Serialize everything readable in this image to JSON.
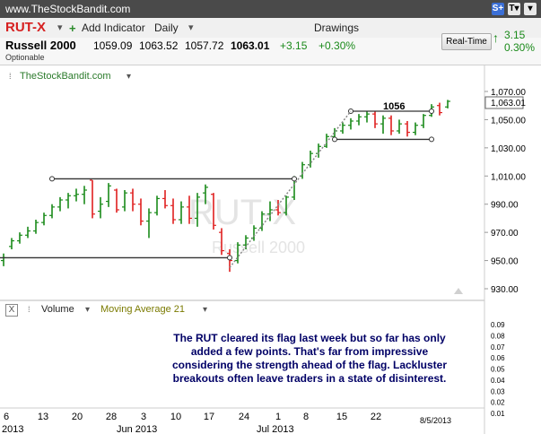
{
  "topbar": {
    "site": "www.TheStockBandit.com",
    "icons": [
      "s-share-icon",
      "t-text-icon",
      "dropdown-icon"
    ]
  },
  "toolbar": {
    "symbol": "RUT-X",
    "add_indicator": "Add Indicator",
    "interval": "Daily",
    "drawings": "Drawings",
    "icons": [
      "plus-icon",
      "chevron-down-icon",
      "wrench-icon",
      "bar-chart-icon",
      "alarm-clock-icon",
      "grid-add-icon",
      "note-icon"
    ]
  },
  "quote": {
    "name": "Russell 2000",
    "open": "1059.09",
    "high": "1063.52",
    "low": "1057.72",
    "last": "1063.01",
    "change": "+3.15",
    "change_pct": "+0.30%",
    "note": "Optionable",
    "realtime_label": "Real-Time",
    "rt_change": "3.15",
    "rt_change_pct": "0.30%"
  },
  "main": {
    "legend": "TheStockBandit.com",
    "watermark_symbol": "RUT-X",
    "watermark_name": "Russell 2000",
    "price_tag": "1,063.01",
    "pattern_label": "1056"
  },
  "volume": {
    "label": "Volume",
    "indicator": "Moving Average 21",
    "box": "X"
  },
  "annotation": "The RUT cleared its flag last week but so far has only added a few points.  That's far from impressive considering the strength ahead of the flag.  Lackluster breakouts often leave traders in a state of disinterest.",
  "colors": {
    "up": "#1a8a1a",
    "down": "#e02020",
    "accent": "#d62020",
    "text_green": "#1a8a1a"
  },
  "chart_data": {
    "type": "ohlc",
    "y_ticks": [
      "1,070.00",
      "1,050.00",
      "1,030.00",
      "1,010.00",
      "990.00",
      "970.00",
      "950.00",
      "930.00"
    ],
    "ylim": [
      930,
      1070
    ],
    "volume_ticks": [
      "0.09",
      "0.08",
      "0.07",
      "0.06",
      "0.05",
      "0.04",
      "0.03",
      "0.02",
      "0.01"
    ],
    "x_day_ticks": [
      "6",
      "13",
      "20",
      "28",
      "3",
      "10",
      "17",
      "24",
      "1",
      "8",
      "15",
      "22"
    ],
    "x_month_ticks": [
      "2013",
      "Jun 2013",
      "Jul 2013"
    ],
    "x_date_label": "8/5/2013",
    "bars": [
      {
        "o": 950,
        "h": 955,
        "l": 946,
        "c": 952,
        "d": "up"
      },
      {
        "o": 960,
        "h": 966,
        "l": 958,
        "c": 964,
        "d": "up"
      },
      {
        "o": 964,
        "h": 970,
        "l": 962,
        "c": 968,
        "d": "up"
      },
      {
        "o": 968,
        "h": 974,
        "l": 966,
        "c": 971,
        "d": "up"
      },
      {
        "o": 971,
        "h": 979,
        "l": 969,
        "c": 977,
        "d": "up"
      },
      {
        "o": 977,
        "h": 984,
        "l": 975,
        "c": 982,
        "d": "up"
      },
      {
        "o": 982,
        "h": 990,
        "l": 980,
        "c": 988,
        "d": "up"
      },
      {
        "o": 988,
        "h": 995,
        "l": 985,
        "c": 993,
        "d": "up"
      },
      {
        "o": 993,
        "h": 998,
        "l": 987,
        "c": 996,
        "d": "up"
      },
      {
        "o": 996,
        "h": 1001,
        "l": 992,
        "c": 997,
        "d": "up"
      },
      {
        "o": 997,
        "h": 1003,
        "l": 990,
        "c": 1000,
        "d": "up"
      },
      {
        "o": 1007,
        "h": 1007,
        "l": 980,
        "c": 983,
        "d": "down"
      },
      {
        "o": 985,
        "h": 995,
        "l": 980,
        "c": 990,
        "d": "up"
      },
      {
        "o": 992,
        "h": 1005,
        "l": 988,
        "c": 1003,
        "d": "up"
      },
      {
        "o": 1000,
        "h": 1001,
        "l": 984,
        "c": 986,
        "d": "down"
      },
      {
        "o": 988,
        "h": 1000,
        "l": 985,
        "c": 998,
        "d": "up"
      },
      {
        "o": 998,
        "h": 1001,
        "l": 985,
        "c": 990,
        "d": "down"
      },
      {
        "o": 990,
        "h": 994,
        "l": 975,
        "c": 978,
        "d": "down"
      },
      {
        "o": 978,
        "h": 987,
        "l": 966,
        "c": 984,
        "d": "up"
      },
      {
        "o": 984,
        "h": 996,
        "l": 982,
        "c": 994,
        "d": "up"
      },
      {
        "o": 994,
        "h": 1000,
        "l": 987,
        "c": 989,
        "d": "down"
      },
      {
        "o": 989,
        "h": 994,
        "l": 976,
        "c": 979,
        "d": "down"
      },
      {
        "o": 979,
        "h": 992,
        "l": 976,
        "c": 988,
        "d": "up"
      },
      {
        "o": 988,
        "h": 996,
        "l": 976,
        "c": 980,
        "d": "down"
      },
      {
        "o": 980,
        "h": 998,
        "l": 974,
        "c": 995,
        "d": "up"
      },
      {
        "o": 998,
        "h": 1004,
        "l": 990,
        "c": 1002,
        "d": "up"
      },
      {
        "o": 997,
        "h": 998,
        "l": 972,
        "c": 975,
        "d": "down"
      },
      {
        "o": 970,
        "h": 973,
        "l": 954,
        "c": 957,
        "d": "down"
      },
      {
        "o": 955,
        "h": 958,
        "l": 942,
        "c": 950,
        "d": "down"
      },
      {
        "o": 950,
        "h": 963,
        "l": 948,
        "c": 961,
        "d": "up"
      },
      {
        "o": 961,
        "h": 968,
        "l": 958,
        "c": 966,
        "d": "up"
      },
      {
        "o": 966,
        "h": 975,
        "l": 964,
        "c": 973,
        "d": "up"
      },
      {
        "o": 973,
        "h": 985,
        "l": 971,
        "c": 983,
        "d": "up"
      },
      {
        "o": 983,
        "h": 992,
        "l": 978,
        "c": 986,
        "d": "up"
      },
      {
        "o": 986,
        "h": 993,
        "l": 982,
        "c": 984,
        "d": "down"
      },
      {
        "o": 984,
        "h": 996,
        "l": 982,
        "c": 995,
        "d": "up"
      },
      {
        "o": 995,
        "h": 1010,
        "l": 993,
        "c": 1008,
        "d": "up"
      },
      {
        "o": 1010,
        "h": 1020,
        "l": 1008,
        "c": 1018,
        "d": "up"
      },
      {
        "o": 1018,
        "h": 1028,
        "l": 1016,
        "c": 1026,
        "d": "up"
      },
      {
        "o": 1026,
        "h": 1033,
        "l": 1023,
        "c": 1031,
        "d": "up"
      },
      {
        "o": 1031,
        "h": 1040,
        "l": 1030,
        "c": 1038,
        "d": "up"
      },
      {
        "o": 1038,
        "h": 1044,
        "l": 1035,
        "c": 1042,
        "d": "up"
      },
      {
        "o": 1042,
        "h": 1048,
        "l": 1040,
        "c": 1046,
        "d": "up"
      },
      {
        "o": 1046,
        "h": 1051,
        "l": 1043,
        "c": 1049,
        "d": "up"
      },
      {
        "o": 1049,
        "h": 1054,
        "l": 1046,
        "c": 1052,
        "d": "up"
      },
      {
        "o": 1052,
        "h": 1056,
        "l": 1048,
        "c": 1054,
        "d": "up"
      },
      {
        "o": 1054,
        "h": 1056,
        "l": 1044,
        "c": 1047,
        "d": "down"
      },
      {
        "o": 1047,
        "h": 1053,
        "l": 1040,
        "c": 1051,
        "d": "up"
      },
      {
        "o": 1051,
        "h": 1053,
        "l": 1039,
        "c": 1042,
        "d": "down"
      },
      {
        "o": 1042,
        "h": 1050,
        "l": 1040,
        "c": 1047,
        "d": "up"
      },
      {
        "o": 1047,
        "h": 1049,
        "l": 1038,
        "c": 1041,
        "d": "down"
      },
      {
        "o": 1041,
        "h": 1048,
        "l": 1039,
        "c": 1046,
        "d": "up"
      },
      {
        "o": 1046,
        "h": 1054,
        "l": 1044,
        "c": 1053,
        "d": "up"
      },
      {
        "o": 1053,
        "h": 1061,
        "l": 1052,
        "c": 1059,
        "d": "up"
      },
      {
        "o": 1060,
        "h": 1062,
        "l": 1053,
        "c": 1055,
        "d": "down"
      },
      {
        "o": 1059,
        "h": 1064,
        "l": 1058,
        "c": 1063,
        "d": "up"
      }
    ],
    "levels": [
      {
        "name": "flag-bottom",
        "y": 952,
        "x0_bar": 0,
        "x1_bar": 28
      },
      {
        "name": "flag-top",
        "y": 1008,
        "x0_bar": 6,
        "x1_bar": 36
      },
      {
        "name": "rect-top",
        "y": 1056,
        "x0_bar": 43,
        "x1_bar": 53
      },
      {
        "name": "rect-bottom",
        "y": 1036,
        "x0_bar": 41,
        "x1_bar": 53
      }
    ]
  }
}
